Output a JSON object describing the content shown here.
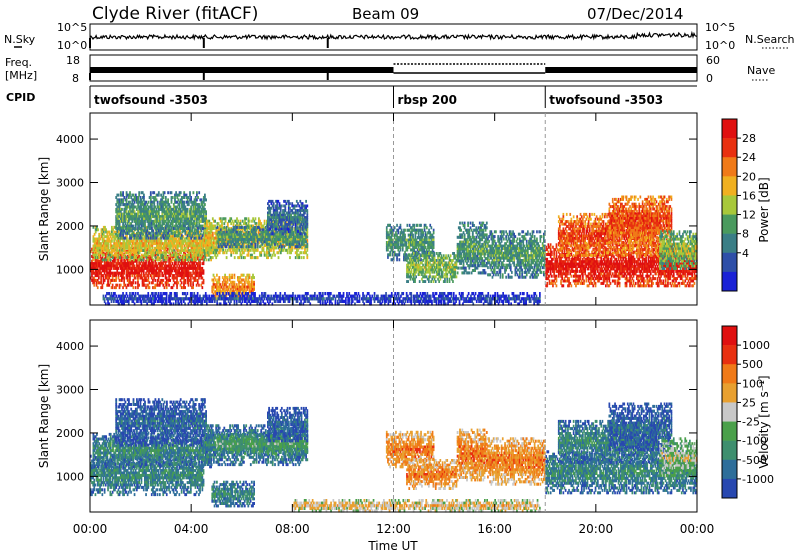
{
  "header": {
    "station": "Clyde River (fitACF)",
    "beam": "Beam 09",
    "date": "07/Dec/2014"
  },
  "noise_panel": {
    "left_label": "N.Sky",
    "right_label": "N.Search",
    "left_ticks": [
      "10^5",
      "10^0"
    ],
    "right_ticks": [
      "10^5",
      "10^0"
    ]
  },
  "freq_panel": {
    "left_label_1": "Freq.",
    "left_label_2": "[MHz]",
    "right_label": "Nave",
    "left_ticks": [
      "18",
      "8"
    ],
    "right_ticks": [
      "60",
      "0"
    ]
  },
  "cpid_panel": {
    "label": "CPID",
    "segments": [
      {
        "start_hour": 0,
        "end_hour": 12,
        "name": "twofsound -3503"
      },
      {
        "start_hour": 12,
        "end_hour": 18,
        "name": "rbsp 200"
      },
      {
        "start_hour": 18,
        "end_hour": 24,
        "name": "twofsound -3503"
      }
    ]
  },
  "x_axis": {
    "label": "Time UT",
    "ticks": [
      "00:00",
      "04:00",
      "08:00",
      "12:00",
      "16:00",
      "20:00",
      "00:00"
    ]
  },
  "power_panel": {
    "ylabel": "Slant Range [km]",
    "yticks": [
      "1000",
      "2000",
      "3000",
      "4000"
    ],
    "colorbar_label": "Power [dB]",
    "colorbar_ticks": [
      "28",
      "24",
      "20",
      "16",
      "12",
      "8",
      "4"
    ]
  },
  "velocity_panel": {
    "ylabel": "Slant Range [km]",
    "yticks": [
      "1000",
      "2000",
      "3000",
      "4000"
    ],
    "colorbar_label": "Velocity [m s⁻¹]",
    "colorbar_ticks": [
      "1000",
      "500",
      "100",
      "25",
      "-25",
      "-100",
      "-500",
      "-1000"
    ]
  },
  "colors": {
    "power_scale": [
      "#1a22d6",
      "#2e4fa8",
      "#3a7e86",
      "#4a9a5e",
      "#a8c83a",
      "#f0b020",
      "#f07a18",
      "#e83010",
      "#e01010"
    ],
    "velocity_scale": [
      "#2848b0",
      "#2e6e9a",
      "#3e8f6e",
      "#4aa04a",
      "#c8c8c8",
      "#e8a030",
      "#f07a18",
      "#e83010",
      "#e01010"
    ]
  },
  "chart_data": {
    "type": "heatmap",
    "x_unit": "hour UT",
    "x_range": [
      0,
      24
    ],
    "y_unit": "km",
    "y_range": [
      180,
      4600
    ],
    "power_clusters": [
      {
        "t0": 0.0,
        "t1": 4.5,
        "r0": 560,
        "r1": 1500,
        "level": 8
      },
      {
        "t0": 0.1,
        "t1": 4.8,
        "r0": 1200,
        "r1": 2000,
        "level": 5
      },
      {
        "t0": 1.0,
        "t1": 4.6,
        "r0": 1700,
        "r1": 2800,
        "level": 3
      },
      {
        "t0": 4.5,
        "t1": 8.6,
        "r0": 1250,
        "r1": 2200,
        "level": 5
      },
      {
        "t0": 5.0,
        "t1": 8.6,
        "r0": 1500,
        "r1": 2000,
        "level": 3
      },
      {
        "t0": 7.0,
        "t1": 8.6,
        "r0": 1800,
        "r1": 2600,
        "level": 2
      },
      {
        "t0": 4.8,
        "t1": 6.5,
        "r0": 300,
        "r1": 900,
        "level": 6
      },
      {
        "t0": 11.7,
        "t1": 13.6,
        "r0": 1200,
        "r1": 2050,
        "level": 3
      },
      {
        "t0": 12.5,
        "t1": 14.5,
        "r0": 700,
        "r1": 1400,
        "level": 4
      },
      {
        "t0": 14.5,
        "t1": 15.7,
        "r0": 900,
        "r1": 2100,
        "level": 3
      },
      {
        "t0": 15.7,
        "t1": 18.0,
        "r0": 800,
        "r1": 1900,
        "level": 3
      },
      {
        "t0": 18.0,
        "t1": 24.0,
        "r0": 600,
        "r1": 1600,
        "level": 8
      },
      {
        "t0": 18.5,
        "t1": 22.5,
        "r0": 1300,
        "r1": 2300,
        "level": 7
      },
      {
        "t0": 20.5,
        "t1": 23.0,
        "r0": 1600,
        "r1": 2700,
        "level": 7
      },
      {
        "t0": 22.5,
        "t1": 24.0,
        "r0": 1000,
        "r1": 1900,
        "level": 4
      },
      {
        "t0": 0.5,
        "t1": 17.8,
        "r0": 180,
        "r1": 480,
        "level": 1
      }
    ],
    "velocity_clusters": [
      {
        "t0": 0.0,
        "t1": 4.5,
        "r0": 560,
        "r1": 1500,
        "level": 2
      },
      {
        "t0": 0.1,
        "t1": 4.8,
        "r0": 1200,
        "r1": 2000,
        "level": 2
      },
      {
        "t0": 1.0,
        "t1": 4.6,
        "r0": 1700,
        "r1": 2800,
        "level": 1
      },
      {
        "t0": 4.5,
        "t1": 8.6,
        "r0": 1250,
        "r1": 2200,
        "level": 2
      },
      {
        "t0": 5.0,
        "t1": 8.6,
        "r0": 1500,
        "r1": 2000,
        "level": 3
      },
      {
        "t0": 7.0,
        "t1": 8.6,
        "r0": 1800,
        "r1": 2600,
        "level": 1
      },
      {
        "t0": 4.8,
        "t1": 6.5,
        "r0": 300,
        "r1": 900,
        "level": 2
      },
      {
        "t0": 11.7,
        "t1": 13.6,
        "r0": 1200,
        "r1": 2050,
        "level": 6
      },
      {
        "t0": 12.5,
        "t1": 14.5,
        "r0": 700,
        "r1": 1400,
        "level": 6
      },
      {
        "t0": 14.5,
        "t1": 15.7,
        "r0": 900,
        "r1": 2100,
        "level": 6
      },
      {
        "t0": 15.7,
        "t1": 18.0,
        "r0": 800,
        "r1": 1900,
        "level": 6
      },
      {
        "t0": 18.0,
        "t1": 24.0,
        "r0": 600,
        "r1": 1600,
        "level": 2
      },
      {
        "t0": 18.5,
        "t1": 22.5,
        "r0": 1300,
        "r1": 2300,
        "level": 2
      },
      {
        "t0": 20.5,
        "t1": 23.0,
        "r0": 1600,
        "r1": 2700,
        "level": 1
      },
      {
        "t0": 22.5,
        "t1": 24.0,
        "r0": 1000,
        "r1": 1900,
        "level": 4
      },
      {
        "t0": 8.0,
        "t1": 17.8,
        "r0": 180,
        "r1": 480,
        "level": 5
      }
    ]
  }
}
